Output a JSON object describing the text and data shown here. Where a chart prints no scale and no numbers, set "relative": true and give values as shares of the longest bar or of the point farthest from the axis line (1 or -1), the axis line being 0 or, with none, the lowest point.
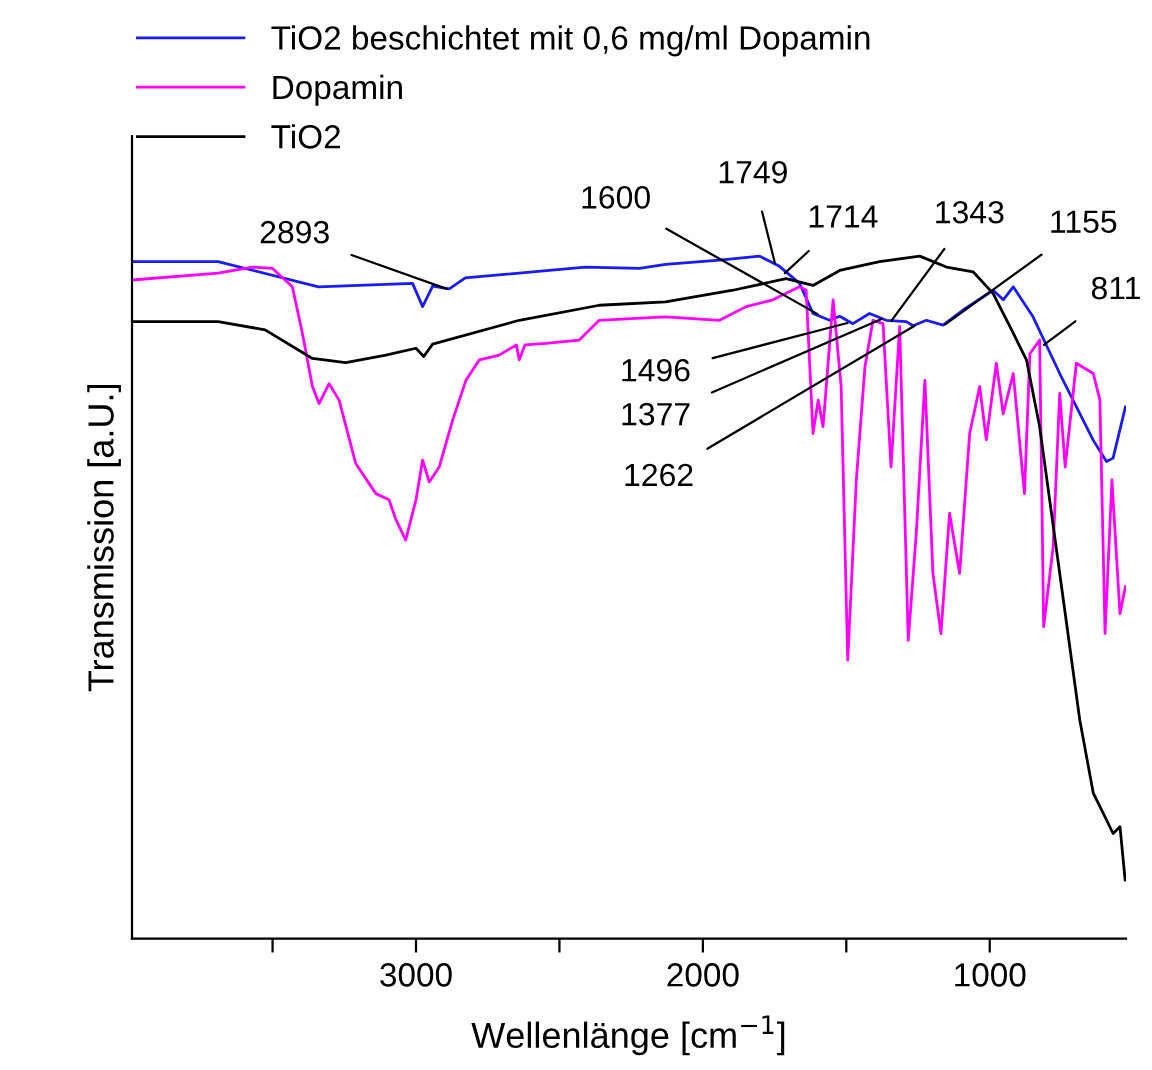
{
  "chart_data": {
    "type": "line",
    "relative": true,
    "xlabel": "Wellenlänge [cm$^{−1}$]",
    "ylabel": "Transmission [a.U.]",
    "xlim": [
      3990,
      525
    ],
    "xticks": [
      {
        "value": 3500,
        "label": null
      },
      3000,
      {
        "value": 2500,
        "label": null
      },
      2000,
      {
        "value": 1500,
        "label": null
      },
      1000
    ],
    "tick_labels": "x",
    "legend": "top left",
    "line_style": "solid",
    "series": [
      {
        "name": "TiO2 beschichtet mit 0,6 mg/ml Dopamin",
        "color": "#1a1aff",
        "x": [
          3990,
          3690,
          3340,
          3012,
          2977,
          2942,
          2884,
          2828,
          2410,
          2221,
          2130,
          1942,
          1802,
          1733,
          1663,
          1616,
          1558,
          1523,
          1477,
          1419,
          1361,
          1291,
          1267,
          1221,
          1163,
          1093,
          988,
          953,
          918,
          849,
          756,
          639,
          593,
          570,
          527
        ],
        "values": [
          0.992,
          0.992,
          0.955,
          0.96,
          0.926,
          0.956,
          0.952,
          0.968,
          0.984,
          0.982,
          0.988,
          0.994,
          1.0,
          0.985,
          0.96,
          0.916,
          0.906,
          0.912,
          0.901,
          0.916,
          0.906,
          0.904,
          0.898,
          0.906,
          0.899,
          0.921,
          0.95,
          0.936,
          0.955,
          0.911,
          0.828,
          0.73,
          0.699,
          0.704,
          0.779
        ]
      },
      {
        "name": "Dopamin",
        "color": "#ff00ff",
        "x": [
          3990,
          3690,
          3570,
          3500,
          3431,
          3396,
          3361,
          3338,
          3303,
          3268,
          3210,
          3140,
          3094,
          3071,
          3036,
          3000,
          2977,
          2954,
          2919,
          2872,
          2826,
          2779,
          2710,
          2650,
          2640,
          2620,
          2547,
          2431,
          2361,
          2268,
          2130,
          1942,
          1849,
          1756,
          1663,
          1640,
          1616,
          1598,
          1581,
          1546,
          1518,
          1495,
          1465,
          1435,
          1407,
          1372,
          1344,
          1314,
          1284,
          1256,
          1226,
          1198,
          1170,
          1140,
          1105,
          1070,
          1035,
          1012,
          977,
          953,
          918,
          879,
          860,
          826,
          812,
          779,
          756,
          737,
          698,
          639,
          616,
          598,
          574,
          546,
          527
        ],
        "values": [
          0.965,
          0.975,
          0.984,
          0.982,
          0.955,
          0.887,
          0.809,
          0.784,
          0.813,
          0.789,
          0.696,
          0.652,
          0.643,
          0.615,
          0.584,
          0.643,
          0.701,
          0.669,
          0.691,
          0.76,
          0.818,
          0.848,
          0.855,
          0.87,
          0.848,
          0.87,
          0.872,
          0.877,
          0.906,
          0.908,
          0.911,
          0.906,
          0.926,
          0.936,
          0.955,
          0.95,
          0.74,
          0.789,
          0.75,
          0.936,
          0.809,
          0.408,
          0.672,
          0.838,
          0.906,
          0.901,
          0.691,
          0.897,
          0.437,
          0.594,
          0.818,
          0.535,
          0.447,
          0.623,
          0.535,
          0.74,
          0.809,
          0.731,
          0.843,
          0.769,
          0.828,
          0.652,
          0.857,
          0.877,
          0.457,
          0.574,
          0.799,
          0.691,
          0.843,
          0.828,
          0.789,
          0.447,
          0.672,
          0.476,
          0.516
        ]
      },
      {
        "name": "TiO2",
        "color": "#000000",
        "x": [
          3990,
          3690,
          3526,
          3361,
          3245,
          3105,
          3000,
          2973,
          2942,
          2640,
          2361,
          2130,
          1895,
          1710,
          1616,
          1523,
          1384,
          1244,
          1151,
          1058,
          988,
          918,
          872,
          826,
          756,
          686,
          639,
          593,
          570,
          546,
          528
        ],
        "values": [
          0.904,
          0.904,
          0.892,
          0.85,
          0.844,
          0.855,
          0.865,
          0.853,
          0.871,
          0.906,
          0.928,
          0.933,
          0.95,
          0.967,
          0.957,
          0.979,
          0.992,
          1.0,
          0.984,
          0.977,
          0.945,
          0.887,
          0.848,
          0.75,
          0.535,
          0.32,
          0.213,
          0.174,
          0.154,
          0.164,
          0.086
        ]
      }
    ],
    "annotations": [
      {
        "text": "2893",
        "x": 2893,
        "y": 0.952
      },
      {
        "text": "1749",
        "x": 1749,
        "y": 0.99
      },
      {
        "text": "1714",
        "x": 1714,
        "y": 0.975
      },
      {
        "text": "1600",
        "x": 1600,
        "y": 0.915
      },
      {
        "text": "1343",
        "x": 1343,
        "y": 0.905
      },
      {
        "text": "1155",
        "x": 1155,
        "y": 0.9
      },
      {
        "text": "811",
        "x": 811,
        "y": 0.87
      },
      {
        "text": "1496",
        "x": 1496,
        "y": 0.902
      },
      {
        "text": "1377",
        "x": 1377,
        "y": 0.908
      },
      {
        "text": "1262",
        "x": 1262,
        "y": 0.898
      }
    ]
  }
}
